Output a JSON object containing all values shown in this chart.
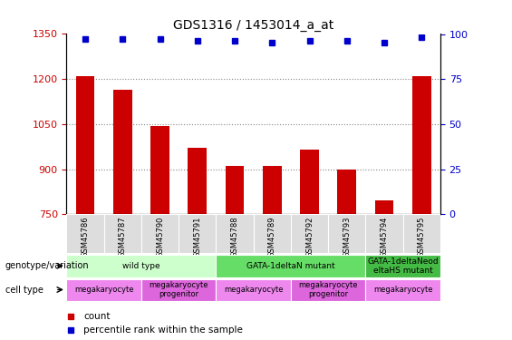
{
  "title": "GDS1316 / 1453014_a_at",
  "samples": [
    "GSM45786",
    "GSM45787",
    "GSM45790",
    "GSM45791",
    "GSM45788",
    "GSM45789",
    "GSM45792",
    "GSM45793",
    "GSM45794",
    "GSM45795"
  ],
  "counts": [
    1210,
    1165,
    1045,
    970,
    910,
    910,
    965,
    900,
    795,
    1210
  ],
  "percentiles": [
    97,
    97,
    97,
    96,
    96,
    95,
    96,
    96,
    95,
    98
  ],
  "ylim_left": [
    750,
    1350
  ],
  "ylim_right": [
    0,
    100
  ],
  "yticks_left": [
    750,
    900,
    1050,
    1200,
    1350
  ],
  "yticks_right": [
    0,
    25,
    50,
    75,
    100
  ],
  "bar_color": "#cc0000",
  "dot_color": "#0000cc",
  "gridline_color": "#888888",
  "gridline_values": [
    900,
    1050,
    1200
  ],
  "genotype_groups": [
    {
      "label": "wild type",
      "start": 0,
      "end": 4,
      "color": "#ccffcc"
    },
    {
      "label": "GATA-1deltaN mutant",
      "start": 4,
      "end": 8,
      "color": "#66dd66"
    },
    {
      "label": "GATA-1deltaNeodeltaHS mutant",
      "start": 8,
      "end": 10,
      "color": "#44bb44"
    }
  ],
  "cell_type_groups": [
    {
      "label": "megakaryocyte",
      "start": 0,
      "end": 2,
      "color": "#ee88ee"
    },
    {
      "label": "megakaryocyte\nprogenitor",
      "start": 2,
      "end": 4,
      "color": "#dd66dd"
    },
    {
      "label": "megakaryocyte",
      "start": 4,
      "end": 6,
      "color": "#ee88ee"
    },
    {
      "label": "megakaryocyte\nprogenitor",
      "start": 6,
      "end": 8,
      "color": "#dd66dd"
    },
    {
      "label": "megakaryocyte",
      "start": 8,
      "end": 10,
      "color": "#ee88ee"
    }
  ],
  "genotype_label_display": [
    "wild type",
    "GATA-1deltaN mutant",
    "GATA-1deltaNeod\neltaHS mutant"
  ],
  "xlabel_color": "#cc0000",
  "ylabel_right_color": "#0000cc",
  "background_color": "#ffffff"
}
